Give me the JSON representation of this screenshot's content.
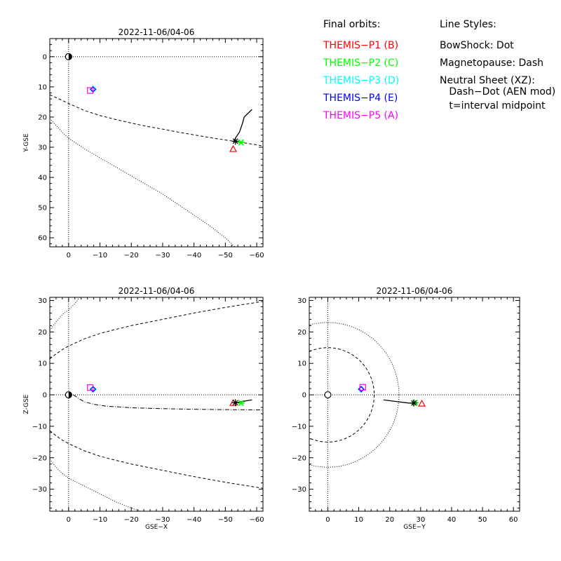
{
  "legend": {
    "orbits_title": "Final orbits:",
    "probes": [
      {
        "label": "THEMIS−P1 (B)",
        "color": "#ff0000",
        "symbol": "triangle"
      },
      {
        "label": "THEMIS−P2 (C)",
        "color": "#00ff00",
        "symbol": "asterisk"
      },
      {
        "label": "THEMIS−P3 (D)",
        "color": "#00ffff",
        "symbol": "diamond"
      },
      {
        "label": "THEMIS−P4 (E)",
        "color": "#0000ff",
        "symbol": "diamond"
      },
      {
        "label": "THEMIS−P5 (A)",
        "color": "#ff00ff",
        "symbol": "square"
      }
    ],
    "styles_title": "Line Styles:",
    "styles": [
      "BowShock: Dot",
      "Magnetopause: Dash",
      "Neutral Sheet (XZ):",
      "   Dash−Dot (AEN mod)",
      "   t=interval midpoint"
    ]
  },
  "chart_data": [
    {
      "id": "xy",
      "type": "scatter",
      "title": "2022-11-06/04-06",
      "xlabel": "",
      "ylabel": "Y-GSE",
      "xlim": [
        6,
        -62
      ],
      "ylim": [
        63,
        -6
      ],
      "xticks": [
        0,
        -10,
        -20,
        -30,
        -40,
        -50,
        -60
      ],
      "yticks": [
        0,
        10,
        20,
        30,
        40,
        50,
        60
      ],
      "magnetopause": [
        [
          6,
          12.6
        ],
        [
          2,
          14.5
        ],
        [
          0,
          15.5
        ],
        [
          -5,
          17.8
        ],
        [
          -10,
          19.5
        ],
        [
          -15,
          20.8
        ],
        [
          -20,
          22
        ],
        [
          -25,
          23.1
        ],
        [
          -30,
          24
        ],
        [
          -35,
          25
        ],
        [
          -40,
          25.9
        ],
        [
          -45,
          26.8
        ],
        [
          -50,
          27.6
        ],
        [
          -55,
          28.4
        ],
        [
          -60,
          29.2
        ],
        [
          -62,
          29.6
        ]
      ],
      "bowshock": [
        [
          6,
          20.5
        ],
        [
          2,
          25
        ],
        [
          0,
          27
        ],
        [
          -5,
          30.5
        ],
        [
          -10,
          33.5
        ],
        [
          -15,
          36.5
        ],
        [
          -20,
          39.5
        ],
        [
          -25,
          42.5
        ],
        [
          -30,
          45.5
        ],
        [
          -35,
          49
        ],
        [
          -40,
          52.5
        ],
        [
          -45,
          56
        ],
        [
          -50,
          60
        ],
        [
          -53,
          63
        ]
      ],
      "orbit_trace": [
        [
          -52.6,
          28.3
        ],
        [
          -53.2,
          27
        ],
        [
          -54.5,
          25
        ],
        [
          -55.5,
          22
        ],
        [
          -56,
          20
        ],
        [
          -58.5,
          17.5
        ]
      ],
      "earth": [
        0,
        0
      ],
      "probes": [
        {
          "probe": "P1",
          "x": -52.5,
          "y": 30.6
        },
        {
          "probe": "P2",
          "x": -55,
          "y": 28.4
        },
        {
          "probe": "P3",
          "x": -7.8,
          "y": 10.8
        },
        {
          "probe": "P4",
          "x": -7.8,
          "y": 10.8
        },
        {
          "probe": "P5",
          "x": -6.9,
          "y": 11.2
        }
      ],
      "midpoint": {
        "x": -53.2,
        "y": 28
      }
    },
    {
      "id": "xz",
      "type": "scatter",
      "title": "2022-11-06/04-06",
      "xlabel": "GSE−X",
      "ylabel": "Z-GSE",
      "xlim": [
        6,
        -62
      ],
      "ylim": [
        -37,
        31
      ],
      "xticks": [
        0,
        -10,
        -20,
        -30,
        -40,
        -50,
        -60
      ],
      "yticks": [
        30,
        20,
        10,
        0,
        -10,
        -20,
        -30
      ],
      "magnetopause": [
        [
          6,
          11.4
        ],
        [
          4,
          13
        ],
        [
          2,
          14.4
        ],
        [
          0,
          15.5
        ],
        [
          -5,
          17.8
        ],
        [
          -10,
          19.5
        ],
        [
          -15,
          20.8
        ],
        [
          -20,
          22
        ],
        [
          -25,
          23
        ],
        [
          -30,
          24
        ],
        [
          -35,
          25
        ],
        [
          -40,
          26
        ],
        [
          -45,
          26.9
        ],
        [
          -50,
          27.8
        ],
        [
          -55,
          28.6
        ],
        [
          -62,
          29.7
        ]
      ],
      "magnetopause_south": [
        [
          6,
          -11.4
        ],
        [
          4,
          -13
        ],
        [
          2,
          -14.4
        ],
        [
          0,
          -15.5
        ],
        [
          -5,
          -17.8
        ],
        [
          -10,
          -19.5
        ],
        [
          -15,
          -20.8
        ],
        [
          -20,
          -22
        ],
        [
          -25,
          -23
        ],
        [
          -30,
          -24
        ],
        [
          -35,
          -25
        ],
        [
          -40,
          -26
        ],
        [
          -45,
          -26.9
        ],
        [
          -50,
          -27.8
        ],
        [
          -55,
          -28.6
        ],
        [
          -62,
          -29.7
        ]
      ],
      "bowshock": [
        [
          6,
          20.5
        ],
        [
          4,
          23.2
        ],
        [
          2,
          25.5
        ],
        [
          0,
          27
        ],
        [
          -2,
          29
        ],
        [
          -3.5,
          31
        ]
      ],
      "bowshock_south": [
        [
          6,
          -20.5
        ],
        [
          4,
          -23
        ],
        [
          2,
          -25
        ],
        [
          0,
          -26.5
        ],
        [
          -5,
          -29
        ],
        [
          -10,
          -31.5
        ],
        [
          -15,
          -34
        ],
        [
          -20,
          -36
        ],
        [
          -23,
          -37
        ]
      ],
      "neutral_sheet": [
        [
          -1.5,
          0
        ],
        [
          -3,
          -1
        ],
        [
          -5,
          -2.2
        ],
        [
          -8,
          -3
        ],
        [
          -12,
          -3.6
        ],
        [
          -20,
          -4.1
        ],
        [
          -30,
          -4.4
        ],
        [
          -40,
          -4.6
        ],
        [
          -50,
          -4.7
        ],
        [
          -62,
          -4.8
        ]
      ],
      "orbit_trace": [
        [
          -52.6,
          -2.6
        ],
        [
          -54,
          -2.4
        ],
        [
          -56,
          -2
        ],
        [
          -58.5,
          -1.6
        ]
      ],
      "earth": [
        0,
        0
      ],
      "probes": [
        {
          "probe": "P1",
          "x": -52.5,
          "y": -2.6
        },
        {
          "probe": "P2",
          "x": -55,
          "y": -2.6
        },
        {
          "probe": "P3",
          "x": -7.8,
          "y": 1.8
        },
        {
          "probe": "P4",
          "x": -7.8,
          "y": 1.8
        },
        {
          "probe": "P5",
          "x": -6.9,
          "y": 2.3
        }
      ],
      "midpoint": {
        "x": -53.2,
        "y": -2.5
      }
    },
    {
      "id": "yz",
      "type": "scatter",
      "title": "2022-11-06/04-06",
      "xlabel": "GSE−Y",
      "ylabel": "",
      "xlim": [
        -6,
        62
      ],
      "ylim": [
        -37,
        31
      ],
      "xticks": [
        0,
        10,
        20,
        30,
        40,
        50,
        60
      ],
      "yticks": [
        30,
        20,
        10,
        0,
        -10,
        -20,
        -30
      ],
      "magnetopause_radius": 15,
      "bowshock_radius": 23,
      "orbit_trace": [
        [
          18,
          -1.6
        ],
        [
          22,
          -2.1
        ],
        [
          26,
          -2.6
        ],
        [
          28,
          -2.7
        ]
      ],
      "earth": [
        0,
        0
      ],
      "probes": [
        {
          "probe": "P1",
          "x": 30.4,
          "y": -2.8
        },
        {
          "probe": "P2",
          "x": 28.2,
          "y": -2.5
        },
        {
          "probe": "P3",
          "x": 10.8,
          "y": 1.8
        },
        {
          "probe": "P4",
          "x": 10.8,
          "y": 1.8
        },
        {
          "probe": "P5",
          "x": 11.3,
          "y": 2.4
        }
      ],
      "midpoint": {
        "x": 27.8,
        "y": -2.6
      }
    }
  ]
}
